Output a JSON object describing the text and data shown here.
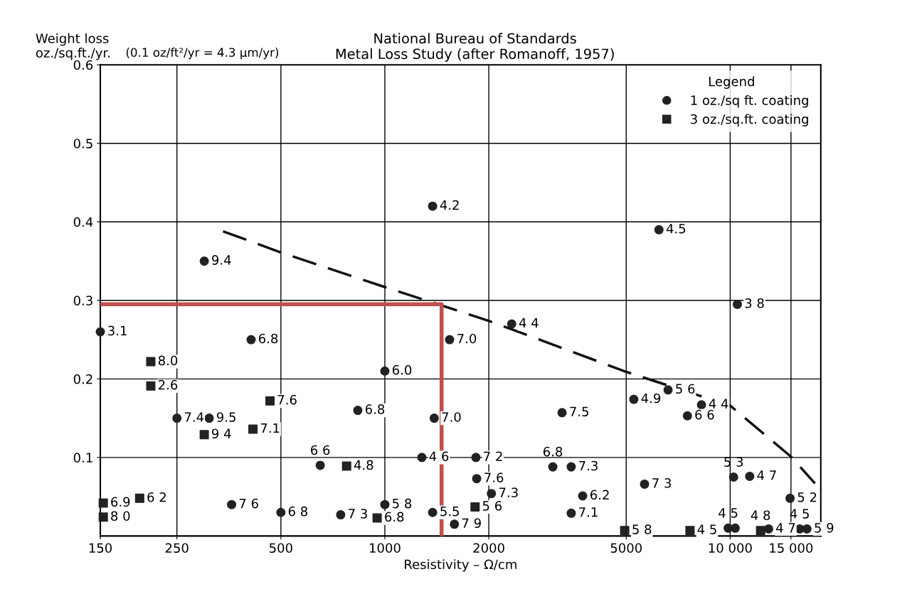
{
  "chart_data": {
    "type": "scatter",
    "title": "National Bureau of Standards\nMetal Loss Study (after Romanoff, 1957)",
    "ylabel": "Weight loss\noz./sq.ft./yr.",
    "xlabel": "Resistivity – Ω/cm",
    "log": "x",
    "legend_title": "Legend",
    "legend": "top right",
    "grid": true,
    "xlim": [
      150,
      18300
    ],
    "xticks": [
      150,
      250,
      500,
      1000,
      2000,
      5000,
      {
        "value": 10000,
        "label": "10 000"
      },
      {
        "value": 15000,
        "label": "15 000"
      }
    ],
    "ylim": [
      0,
      0.6
    ],
    "yticks": [
      0.1,
      0.2,
      0.3,
      0.4,
      0.5,
      0.6
    ],
    "series": [
      {
        "name": "1 oz./sq ft. coating",
        "marker": "circle",
        "color": "#222222",
        "x": [
          150,
          300,
          410,
          1375,
          1540,
          1000,
          2330,
          6220,
          10490,
          310,
          250,
          835,
          1390,
          1280,
          1835,
          650,
          1845,
          360,
          500,
          745,
          1000,
          1375,
          1590,
          2035,
          6610,
          5260,
          8260,
          7520,
          3260,
          3065,
          3465,
          5650,
          3740,
          3465,
          10230,
          11390,
          14910,
          9870,
          10340,
          12920,
          15900,
          16680
        ],
        "values": [
          0.26,
          0.35,
          0.25,
          0.42,
          0.25,
          0.21,
          0.27,
          0.39,
          0.295,
          0.15,
          0.15,
          0.16,
          0.15,
          0.1,
          0.1,
          0.09,
          0.073,
          0.04,
          0.03,
          0.027,
          0.04,
          0.03,
          0.015,
          0.054,
          0.186,
          0.174,
          0.167,
          0.153,
          0.157,
          0.088,
          0.088,
          0.066,
          0.051,
          0.029,
          0.075,
          0.076,
          0.048,
          0.01,
          0.01,
          0.009,
          0.009,
          0.009
        ]
      },
      {
        "name": "3 oz./sq.ft. coating",
        "marker": "square",
        "color": "#222222",
        "x": [
          210,
          210,
          465,
          415,
          300,
          775,
          153,
          153,
          195,
          950,
          1825,
          4950,
          7650,
          12250
        ],
        "values": [
          0.222,
          0.191,
          0.172,
          0.136,
          0.129,
          0.089,
          0.042,
          0.024,
          0.048,
          0.023,
          0.037,
          0.007,
          0.007,
          0.007
        ]
      },
      {
        "type": "line",
        "line_style": "dashed",
        "color": "#111111",
        "x": [
          340,
          500,
          1000,
          2000,
          5000,
          10000,
          15000,
          17600
        ],
        "values": [
          0.388,
          0.361,
          0.317,
          0.274,
          0.209,
          0.166,
          0.101,
          0.067
        ]
      },
      {
        "type": "line",
        "line_style": "solid",
        "color": "#c0504d",
        "x": [
          150,
          1460,
          1460
        ],
        "values": [
          0.295,
          0.295,
          0
        ]
      }
    ],
    "annotations": [
      "(0.1 oz/ft²/yr = 4.3 μm/yr)",
      {
        "text": "3.1",
        "x": 150,
        "y": 0.26
      },
      {
        "text": "9.4",
        "x": 300,
        "y": 0.35
      },
      {
        "text": "6.8",
        "x": 410,
        "y": 0.25
      },
      {
        "text": "4.2",
        "x": 1375,
        "y": 0.42
      },
      {
        "text": "7.0",
        "x": 1540,
        "y": 0.25
      },
      {
        "text": "6.0",
        "x": 1000,
        "y": 0.21
      },
      {
        "text": "4 4",
        "x": 2330,
        "y": 0.27
      },
      {
        "text": "4.5",
        "x": 6220,
        "y": 0.39
      },
      {
        "text": "3 8",
        "x": 10490,
        "y": 0.295
      },
      {
        "text": "9.5",
        "x": 310,
        "y": 0.15
      },
      {
        "text": "7.4",
        "x": 250,
        "y": 0.15
      },
      {
        "text": "6.8",
        "x": 835,
        "y": 0.16
      },
      {
        "text": "7.0",
        "x": 1390,
        "y": 0.15
      },
      {
        "text": "4 6",
        "x": 1280,
        "y": 0.1
      },
      {
        "text": "7 2",
        "x": 1835,
        "y": 0.1
      },
      {
        "text": "6 6",
        "x": 650,
        "y": 0.09
      },
      {
        "text": "7.6",
        "x": 1845,
        "y": 0.073
      },
      {
        "text": "7 6",
        "x": 360,
        "y": 0.04
      },
      {
        "text": "6 8",
        "x": 500,
        "y": 0.03
      },
      {
        "text": "7 3",
        "x": 745,
        "y": 0.027
      },
      {
        "text": "5 8",
        "x": 1000,
        "y": 0.04
      },
      {
        "text": "5.5",
        "x": 1375,
        "y": 0.03
      },
      {
        "text": "7 9",
        "x": 1590,
        "y": 0.015
      },
      {
        "text": "7.3",
        "x": 2035,
        "y": 0.054
      },
      {
        "text": "5 6",
        "x": 6610,
        "y": 0.186
      },
      {
        "text": "4.9",
        "x": 5260,
        "y": 0.174
      },
      {
        "text": "4 4",
        "x": 8260,
        "y": 0.167
      },
      {
        "text": "6 6",
        "x": 7520,
        "y": 0.153
      },
      {
        "text": "7.5",
        "x": 3260,
        "y": 0.157
      },
      {
        "text": "6.8",
        "x": 3065,
        "y": 0.088
      },
      {
        "text": "7.3",
        "x": 3465,
        "y": 0.088
      },
      {
        "text": "7 3",
        "x": 5650,
        "y": 0.066
      },
      {
        "text": "6.2",
        "x": 3740,
        "y": 0.051
      },
      {
        "text": "7.1",
        "x": 3465,
        "y": 0.029
      },
      {
        "text": "5 3",
        "x": 10230,
        "y": 0.075
      },
      {
        "text": "4 7",
        "x": 11390,
        "y": 0.076
      },
      {
        "text": "5 2",
        "x": 14910,
        "y": 0.048
      },
      {
        "text": "4 5",
        "x": 9870,
        "y": 0.01
      },
      {
        "text": "4 7",
        "x": 12920,
        "y": 0.009
      },
      {
        "text": "4 5",
        "x": 15900,
        "y": 0.009
      },
      {
        "text": "5 9",
        "x": 16680,
        "y": 0.009
      },
      {
        "text": "8.0",
        "x": 210,
        "y": 0.222
      },
      {
        "text": "2.6",
        "x": 210,
        "y": 0.191
      },
      {
        "text": "7.6",
        "x": 465,
        "y": 0.172
      },
      {
        "text": "7.1",
        "x": 415,
        "y": 0.136
      },
      {
        "text": "9 4",
        "x": 300,
        "y": 0.129
      },
      {
        "text": "4.8",
        "x": 775,
        "y": 0.089
      },
      {
        "text": "6.9",
        "x": 153,
        "y": 0.042
      },
      {
        "text": "8 0",
        "x": 153,
        "y": 0.024
      },
      {
        "text": "6 2",
        "x": 195,
        "y": 0.048
      },
      {
        "text": "6.8",
        "x": 950,
        "y": 0.023
      },
      {
        "text": "5 6",
        "x": 1825,
        "y": 0.037
      },
      {
        "text": "5 8",
        "x": 4950,
        "y": 0.007
      },
      {
        "text": "4 5",
        "x": 7650,
        "y": 0.007
      },
      {
        "text": "4 8",
        "x": 12250,
        "y": 0.007
      }
    ]
  }
}
